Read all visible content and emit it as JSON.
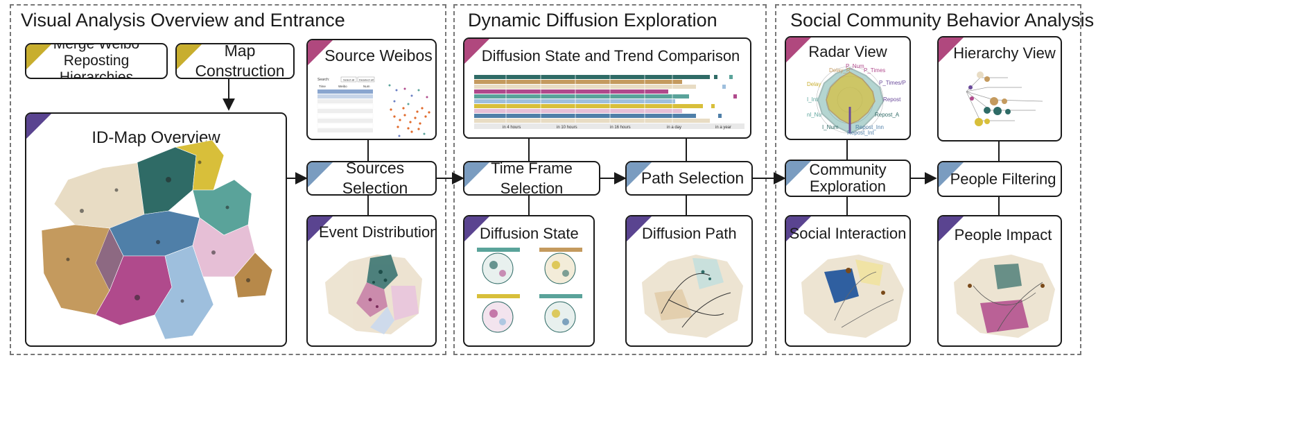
{
  "sections": {
    "overview": {
      "title": "Visual Analysis Overview and Entrance"
    },
    "diffusion": {
      "title": "Dynamic Diffusion Exploration"
    },
    "community": {
      "title": "Social Community Behavior Analysis"
    }
  },
  "nodes": {
    "merge": "Merge Weibo\nReposting Hierarchies",
    "map_construction": "Map Construction",
    "id_map": "ID-Map Overview",
    "source_weibos": "Source Weibos",
    "sources_selection": "Sources Selection",
    "event_distribution": "Event Distribution",
    "state_trend": "Diffusion State and Trend Comparison",
    "time_frame": "Time Frame Selection",
    "path_selection": "Path Selection",
    "diffusion_state": "Diffusion State",
    "diffusion_path": "Diffusion Path",
    "radar_view": "Radar View",
    "hierarchy_view": "Hierarchy View",
    "community_exploration": "Community\nExploration",
    "people_filtering": "People Filtering",
    "social_interaction": "Social Interaction",
    "people_impact": "People Impact"
  },
  "source_table": {
    "search_label": "Search:",
    "select_all": "Select all",
    "deselect_all": "Deselect all",
    "headers": [
      "Time",
      "Weibo",
      "Num"
    ]
  },
  "trend_axis": {
    "ticks": [
      "in 4 hours",
      "in 10 hours",
      "in 16 hours",
      "in a day",
      "in a year"
    ]
  },
  "radar": {
    "axes": [
      "P_Num",
      "P_Times",
      "P_Times/P",
      "Repost",
      "Repost_A",
      "Repost_Inn",
      "Repost_Int",
      "I_Num",
      "nl_Nu",
      "I_Int",
      "Delay",
      "Delay_R"
    ]
  },
  "colors": {
    "gold": "#c8ae2e",
    "purple": "#5a4490",
    "pink": "#b0487e",
    "blue": "#7a9cc0",
    "teal_dark": "#2f6b66",
    "teal": "#5aa39a",
    "tan": "#c49a5e",
    "cream": "#e8dcc4",
    "magenta": "#b04a8c",
    "light_pink": "#e6bfd6",
    "steel_blue": "#4f7fa8",
    "light_blue": "#9ebfdd"
  }
}
